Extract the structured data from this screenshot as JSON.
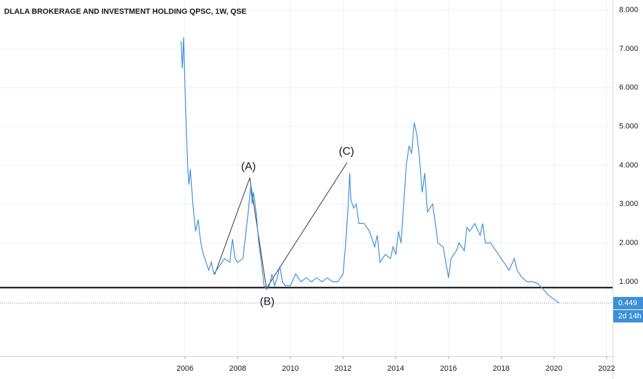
{
  "chart_data": {
    "type": "line",
    "title": "DLALA BROKERAGE AND INVESTMENT HOLDING QPSC, 1W, QSE",
    "color": "#3d8fd8",
    "x": [
      2005.85,
      2005.9,
      2005.95,
      2006.0,
      2006.05,
      2006.1,
      2006.15,
      2006.2,
      2006.3,
      2006.4,
      2006.5,
      2006.6,
      2006.7,
      2006.8,
      2006.9,
      2007.0,
      2007.1,
      2007.3,
      2007.5,
      2007.7,
      2007.8,
      2007.9,
      2008.0,
      2008.2,
      2008.3,
      2008.4,
      2008.5,
      2008.55,
      2008.6,
      2008.7,
      2008.8,
      2008.9,
      2009.0,
      2009.1,
      2009.2,
      2009.3,
      2009.4,
      2009.5,
      2009.6,
      2009.7,
      2009.8,
      2010.0,
      2010.2,
      2010.4,
      2010.6,
      2010.8,
      2011.0,
      2011.2,
      2011.4,
      2011.6,
      2011.8,
      2012.0,
      2012.1,
      2012.2,
      2012.25,
      2012.3,
      2012.4,
      2012.5,
      2012.6,
      2012.8,
      2013.0,
      2013.2,
      2013.3,
      2013.4,
      2013.6,
      2013.8,
      2013.9,
      2014.0,
      2014.1,
      2014.2,
      2014.3,
      2014.4,
      2014.5,
      2014.6,
      2014.7,
      2014.8,
      2014.9,
      2015.0,
      2015.1,
      2015.2,
      2015.4,
      2015.5,
      2015.6,
      2015.8,
      2015.9,
      2016.0,
      2016.1,
      2016.3,
      2016.4,
      2016.6,
      2016.7,
      2016.8,
      2017.0,
      2017.2,
      2017.3,
      2017.4,
      2017.6,
      2017.8,
      2018.0,
      2018.2,
      2018.3,
      2018.5,
      2018.6,
      2018.8,
      2019.0,
      2019.2,
      2019.4,
      2019.6,
      2019.8,
      2020.0,
      2020.2
    ],
    "values": [
      7.2,
      6.5,
      7.3,
      6.0,
      5.0,
      4.0,
      3.5,
      3.9,
      3.0,
      2.3,
      2.6,
      2.0,
      1.7,
      1.5,
      1.3,
      1.5,
      1.2,
      1.4,
      1.6,
      1.5,
      2.1,
      1.6,
      1.5,
      1.6,
      2.2,
      2.8,
      3.5,
      3.0,
      3.3,
      2.8,
      2.0,
      1.5,
      0.9,
      0.8,
      0.9,
      1.2,
      0.9,
      1.1,
      1.4,
      1.0,
      0.9,
      0.9,
      1.2,
      1.0,
      1.1,
      1.0,
      1.1,
      1.0,
      1.1,
      1.0,
      1.0,
      1.2,
      2.0,
      3.0,
      3.8,
      3.1,
      2.9,
      3.0,
      2.5,
      2.5,
      2.3,
      1.9,
      2.2,
      1.5,
      1.7,
      1.6,
      1.9,
      1.7,
      2.3,
      2.0,
      3.0,
      4.0,
      4.5,
      4.3,
      5.1,
      4.8,
      4.2,
      3.3,
      3.8,
      2.8,
      3.0,
      2.5,
      2.0,
      1.9,
      1.5,
      1.1,
      1.6,
      1.8,
      2.0,
      1.8,
      2.4,
      2.3,
      2.5,
      2.2,
      2.5,
      2.0,
      2.0,
      1.8,
      1.6,
      1.4,
      1.3,
      1.6,
      1.3,
      1.1,
      1.0,
      1.0,
      0.95,
      0.8,
      0.65,
      0.55,
      0.449
    ],
    "xlim": [
      1998.98,
      2022.23
    ],
    "ylim": [
      -0.92,
      8.26
    ],
    "xticks": [
      2006,
      2008,
      2010,
      2012,
      2014,
      2016,
      2018,
      2020,
      2022
    ],
    "yticks": [
      {
        "value": 1,
        "label": "1.000"
      },
      {
        "value": 2,
        "label": "2.000"
      },
      {
        "value": 3,
        "label": "3.000"
      },
      {
        "value": 4,
        "label": "4.000"
      },
      {
        "value": 5,
        "label": "5.000"
      },
      {
        "value": 6,
        "label": "6.000"
      },
      {
        "value": 7,
        "label": "7.000"
      },
      {
        "value": 8,
        "label": "8.000"
      }
    ],
    "grid": true,
    "horizontal_line": 0.85,
    "countdown": "2d 14h",
    "wave_lines": {
      "x": [
        2007.13,
        2008.46,
        2009.09,
        2012.15
      ],
      "values": [
        1.19,
        3.68,
        0.83,
        4.07
      ]
    },
    "annotations": [
      {
        "text": "(A)",
        "x": 2008.41,
        "y": 3.96
      },
      {
        "text": "(B)",
        "x": 2009.12,
        "y": 0.48
      },
      {
        "text": "(C)",
        "x": 2012.13,
        "y": 4.35
      }
    ]
  }
}
